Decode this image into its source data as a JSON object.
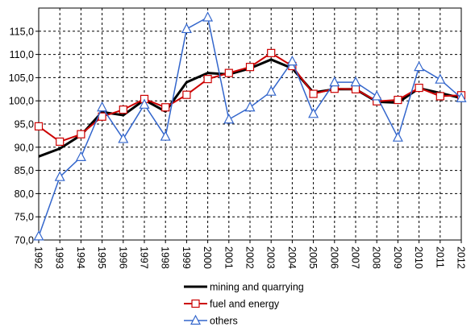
{
  "chart_data": {
    "type": "line",
    "title": "",
    "xlabel": "",
    "ylabel": "",
    "ylim": [
      70,
      120
    ],
    "yticks": [
      "70,0",
      "75,0",
      "80,0",
      "85,0",
      "90,0",
      "95,0",
      "100,0",
      "105,0",
      "110,0",
      "115,0"
    ],
    "grid": true,
    "legend_position": "bottom",
    "categories": [
      "1992",
      "1993",
      "1994",
      "1995",
      "1996",
      "1997",
      "1998",
      "1999",
      "2000",
      "2001",
      "2002",
      "2003",
      "2004",
      "2005",
      "2006",
      "2007",
      "2008",
      "2009",
      "2010",
      "2011",
      "2012"
    ],
    "series": [
      {
        "name": "mining and quarrying",
        "color": "#000000",
        "marker": "none",
        "values": [
          88.0,
          89.7,
          92.6,
          97.6,
          96.9,
          100.2,
          97.7,
          104.0,
          106.0,
          105.7,
          107.0,
          108.9,
          107.0,
          101.8,
          102.5,
          102.5,
          99.8,
          99.6,
          102.7,
          101.7,
          100.6
        ]
      },
      {
        "name": "fuel and energy",
        "color": "#cc0000",
        "marker": "square",
        "values": [
          94.5,
          91.2,
          92.8,
          96.6,
          98.1,
          100.4,
          98.6,
          101.3,
          104.7,
          106.0,
          107.3,
          110.3,
          107.5,
          101.5,
          102.6,
          102.5,
          99.9,
          100.2,
          102.8,
          101.0,
          101.2
        ]
      },
      {
        "name": "others",
        "color": "#3366cc",
        "marker": "triangle",
        "values": [
          70.8,
          83.6,
          87.9,
          98.6,
          91.8,
          99.2,
          92.3,
          115.5,
          118.0,
          96.0,
          98.6,
          102.0,
          108.5,
          97.2,
          104.0,
          104.0,
          101.0,
          92.1,
          107.3,
          104.6,
          100.6
        ]
      }
    ]
  }
}
